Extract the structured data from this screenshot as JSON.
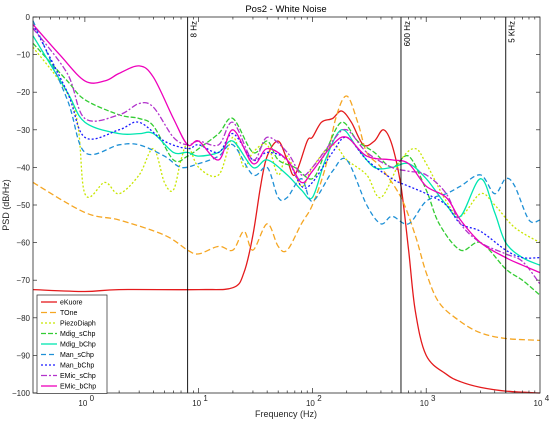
{
  "chart_data": {
    "type": "line",
    "title": "Pos2 - White Noise",
    "xlabel": "Frequency (Hz)",
    "ylabel": "PSD (dB/Hz)",
    "xscale": "log",
    "xlim": [
      0.35,
      10000
    ],
    "ylim": [
      -100,
      0
    ],
    "grid": false,
    "legend_position": "bottom-left",
    "x_ticks": [
      {
        "value": 1,
        "base": "10",
        "exp": "0"
      },
      {
        "value": 10,
        "base": "10",
        "exp": "1"
      },
      {
        "value": 100,
        "base": "10",
        "exp": "2"
      },
      {
        "value": 1000,
        "base": "10",
        "exp": "3"
      },
      {
        "value": 10000,
        "base": "10",
        "exp": "4"
      }
    ],
    "y_ticks": [
      0,
      -10,
      -20,
      -30,
      -40,
      -50,
      -60,
      -70,
      -80,
      -90,
      -100
    ],
    "vertical_lines": [
      {
        "x": 8,
        "label": "8 Hz"
      },
      {
        "x": 600,
        "label": "600 Hz"
      },
      {
        "x": 5000,
        "label": "5 KHz"
      }
    ],
    "series": [
      {
        "name": "eKuore",
        "color": "#e41a1c",
        "dash": "solid",
        "points": [
          [
            0.35,
            -72.5
          ],
          [
            1,
            -73
          ],
          [
            2,
            -72.5
          ],
          [
            10,
            -72.5
          ],
          [
            20,
            -72
          ],
          [
            25,
            -68
          ],
          [
            30,
            -58
          ],
          [
            35,
            -45
          ],
          [
            40,
            -37
          ],
          [
            50,
            -33
          ],
          [
            60,
            -38
          ],
          [
            70,
            -42
          ],
          [
            90,
            -33
          ],
          [
            100,
            -32
          ],
          [
            120,
            -28
          ],
          [
            150,
            -27
          ],
          [
            180,
            -25
          ],
          [
            220,
            -28
          ],
          [
            280,
            -34
          ],
          [
            350,
            -33
          ],
          [
            420,
            -30
          ],
          [
            500,
            -34
          ],
          [
            600,
            -45
          ],
          [
            700,
            -62
          ],
          [
            800,
            -78
          ],
          [
            1000,
            -90
          ],
          [
            1500,
            -95
          ],
          [
            2000,
            -97
          ],
          [
            3000,
            -98.5
          ],
          [
            5000,
            -99.5
          ],
          [
            10000,
            -100
          ]
        ]
      },
      {
        "name": "TOne",
        "color": "#f5a623",
        "dash": "6,3",
        "points": [
          [
            0.35,
            -44
          ],
          [
            1,
            -52
          ],
          [
            2,
            -54
          ],
          [
            5,
            -58
          ],
          [
            8,
            -62
          ],
          [
            10,
            -63
          ],
          [
            15,
            -61
          ],
          [
            20,
            -62
          ],
          [
            25,
            -57
          ],
          [
            30,
            -62
          ],
          [
            40,
            -55
          ],
          [
            50,
            -61
          ],
          [
            60,
            -62
          ],
          [
            80,
            -55
          ],
          [
            100,
            -50
          ],
          [
            130,
            -40
          ],
          [
            160,
            -27
          ],
          [
            200,
            -21
          ],
          [
            250,
            -28
          ],
          [
            300,
            -36
          ],
          [
            400,
            -40
          ],
          [
            600,
            -48
          ],
          [
            800,
            -58
          ],
          [
            1000,
            -68
          ],
          [
            1300,
            -76
          ],
          [
            2000,
            -81
          ],
          [
            3000,
            -84
          ],
          [
            5000,
            -85.5
          ],
          [
            10000,
            -86
          ]
        ]
      },
      {
        "name": "PiezoDiaph",
        "color": "#c8e600",
        "dash": "2,2",
        "points": [
          [
            0.35,
            -8
          ],
          [
            0.8,
            -24
          ],
          [
            1,
            -47
          ],
          [
            1.5,
            -44
          ],
          [
            2,
            -47
          ],
          [
            3,
            -42
          ],
          [
            4,
            -35
          ],
          [
            5,
            -44
          ],
          [
            6,
            -46
          ],
          [
            7,
            -38
          ],
          [
            8,
            -34
          ],
          [
            10,
            -40
          ],
          [
            15,
            -42
          ],
          [
            20,
            -32
          ],
          [
            25,
            -40
          ],
          [
            30,
            -36
          ],
          [
            40,
            -34
          ],
          [
            50,
            -42
          ],
          [
            60,
            -37
          ],
          [
            80,
            -45
          ],
          [
            100,
            -40
          ],
          [
            150,
            -34
          ],
          [
            200,
            -38
          ],
          [
            300,
            -42
          ],
          [
            400,
            -48
          ],
          [
            600,
            -38
          ],
          [
            800,
            -35
          ],
          [
            1000,
            -39
          ],
          [
            1500,
            -49
          ],
          [
            2000,
            -53
          ],
          [
            3000,
            -47
          ],
          [
            4000,
            -50
          ],
          [
            6000,
            -56
          ],
          [
            10000,
            -60
          ]
        ]
      },
      {
        "name": "Mdig_sChp",
        "color": "#33cc33",
        "dash": "5,2",
        "points": [
          [
            0.35,
            -7
          ],
          [
            0.7,
            -17
          ],
          [
            1,
            -22
          ],
          [
            2,
            -26
          ],
          [
            3,
            -27
          ],
          [
            4,
            -29
          ],
          [
            6,
            -38
          ],
          [
            8,
            -37
          ],
          [
            10,
            -35
          ],
          [
            15,
            -31
          ],
          [
            20,
            -27
          ],
          [
            30,
            -36
          ],
          [
            40,
            -33
          ],
          [
            50,
            -38
          ],
          [
            70,
            -40
          ],
          [
            100,
            -43
          ],
          [
            130,
            -36
          ],
          [
            180,
            -28
          ],
          [
            250,
            -33
          ],
          [
            350,
            -36
          ],
          [
            500,
            -40
          ],
          [
            700,
            -37
          ],
          [
            1000,
            -46
          ],
          [
            1300,
            -55
          ],
          [
            2000,
            -62
          ],
          [
            3000,
            -60
          ],
          [
            5000,
            -67
          ],
          [
            7000,
            -70
          ],
          [
            10000,
            -74
          ]
        ]
      },
      {
        "name": "Mdig_bChp",
        "color": "#00e6b0",
        "dash": "solid",
        "points": [
          [
            0.35,
            -5
          ],
          [
            0.7,
            -20
          ],
          [
            1,
            -28
          ],
          [
            2,
            -31
          ],
          [
            3,
            -31
          ],
          [
            4,
            -31
          ],
          [
            6,
            -36
          ],
          [
            8,
            -36
          ],
          [
            10,
            -37
          ],
          [
            15,
            -36
          ],
          [
            20,
            -33
          ],
          [
            30,
            -40
          ],
          [
            40,
            -38
          ],
          [
            60,
            -42
          ],
          [
            80,
            -46
          ],
          [
            100,
            -48
          ],
          [
            130,
            -38
          ],
          [
            180,
            -30
          ],
          [
            250,
            -35
          ],
          [
            350,
            -40
          ],
          [
            500,
            -40
          ],
          [
            700,
            -39
          ],
          [
            1000,
            -43
          ],
          [
            1500,
            -50
          ],
          [
            2000,
            -53
          ],
          [
            3000,
            -43
          ],
          [
            4000,
            -52
          ],
          [
            5000,
            -60
          ],
          [
            7000,
            -64
          ],
          [
            10000,
            -66
          ]
        ]
      },
      {
        "name": "Man_sChp",
        "color": "#1e90d6",
        "dash": "5,3",
        "points": [
          [
            0.35,
            -1
          ],
          [
            0.7,
            -22
          ],
          [
            1,
            -36
          ],
          [
            2,
            -34
          ],
          [
            3,
            -34
          ],
          [
            5,
            -37
          ],
          [
            7,
            -40
          ],
          [
            10,
            -39
          ],
          [
            15,
            -37
          ],
          [
            20,
            -34
          ],
          [
            30,
            -42
          ],
          [
            40,
            -40
          ],
          [
            50,
            -48
          ],
          [
            60,
            -48
          ],
          [
            80,
            -43
          ],
          [
            100,
            -49
          ],
          [
            150,
            -41
          ],
          [
            200,
            -38
          ],
          [
            300,
            -50
          ],
          [
            400,
            -55
          ],
          [
            500,
            -53
          ],
          [
            700,
            -55
          ],
          [
            1000,
            -49
          ],
          [
            1500,
            -47
          ],
          [
            2000,
            -45
          ],
          [
            3000,
            -42
          ],
          [
            4000,
            -47
          ],
          [
            5000,
            -43
          ],
          [
            6000,
            -45
          ],
          [
            8000,
            -54
          ],
          [
            10000,
            -54
          ]
        ]
      },
      {
        "name": "Man_bChp",
        "color": "#1a1aff",
        "dash": "2,2",
        "points": [
          [
            0.35,
            -2
          ],
          [
            0.7,
            -20
          ],
          [
            1,
            -32
          ],
          [
            2,
            -30
          ],
          [
            3,
            -28
          ],
          [
            5,
            -33
          ],
          [
            8,
            -35
          ],
          [
            10,
            -34
          ],
          [
            15,
            -36
          ],
          [
            20,
            -31
          ],
          [
            30,
            -38
          ],
          [
            40,
            -36
          ],
          [
            60,
            -38
          ],
          [
            80,
            -45
          ],
          [
            100,
            -44
          ],
          [
            150,
            -36
          ],
          [
            200,
            -32
          ],
          [
            300,
            -38
          ],
          [
            500,
            -43
          ],
          [
            700,
            -45
          ],
          [
            1000,
            -47
          ],
          [
            1500,
            -50
          ],
          [
            2000,
            -55
          ],
          [
            3000,
            -57
          ],
          [
            5000,
            -62
          ],
          [
            7000,
            -64
          ],
          [
            10000,
            -64
          ]
        ]
      },
      {
        "name": "EMic_sChp",
        "color": "#b233cc",
        "dash": "6,2,2,2",
        "points": [
          [
            0.35,
            -3
          ],
          [
            0.7,
            -15
          ],
          [
            1,
            -27
          ],
          [
            2,
            -26
          ],
          [
            3,
            -23
          ],
          [
            4,
            -24
          ],
          [
            6,
            -32
          ],
          [
            8,
            -34
          ],
          [
            10,
            -33
          ],
          [
            15,
            -34
          ],
          [
            20,
            -28
          ],
          [
            30,
            -38
          ],
          [
            40,
            -32
          ],
          [
            60,
            -36
          ],
          [
            80,
            -42
          ],
          [
            100,
            -40
          ],
          [
            150,
            -33
          ],
          [
            200,
            -30
          ],
          [
            300,
            -36
          ],
          [
            500,
            -40
          ],
          [
            700,
            -41
          ],
          [
            1000,
            -42
          ],
          [
            1500,
            -47
          ],
          [
            2000,
            -55
          ],
          [
            3000,
            -60
          ],
          [
            5000,
            -63
          ],
          [
            7000,
            -65
          ],
          [
            10000,
            -71
          ]
        ]
      },
      {
        "name": "EMic_bChp",
        "color": "#ee00bb",
        "dash": "solid",
        "points": [
          [
            0.35,
            -2
          ],
          [
            0.6,
            -10
          ],
          [
            1,
            -17
          ],
          [
            1.5,
            -17
          ],
          [
            2,
            -15
          ],
          [
            3,
            -13
          ],
          [
            4,
            -16
          ],
          [
            6,
            -27
          ],
          [
            8,
            -34
          ],
          [
            10,
            -33
          ],
          [
            15,
            -38
          ],
          [
            20,
            -30
          ],
          [
            30,
            -39
          ],
          [
            40,
            -35
          ],
          [
            60,
            -38
          ],
          [
            80,
            -44
          ],
          [
            100,
            -41
          ],
          [
            150,
            -34
          ],
          [
            200,
            -32
          ],
          [
            300,
            -37
          ],
          [
            500,
            -38
          ],
          [
            700,
            -39
          ],
          [
            1000,
            -45
          ],
          [
            1500,
            -48
          ],
          [
            2000,
            -54
          ],
          [
            3000,
            -60
          ],
          [
            5000,
            -64
          ],
          [
            7000,
            -66
          ],
          [
            10000,
            -68
          ]
        ]
      }
    ]
  }
}
